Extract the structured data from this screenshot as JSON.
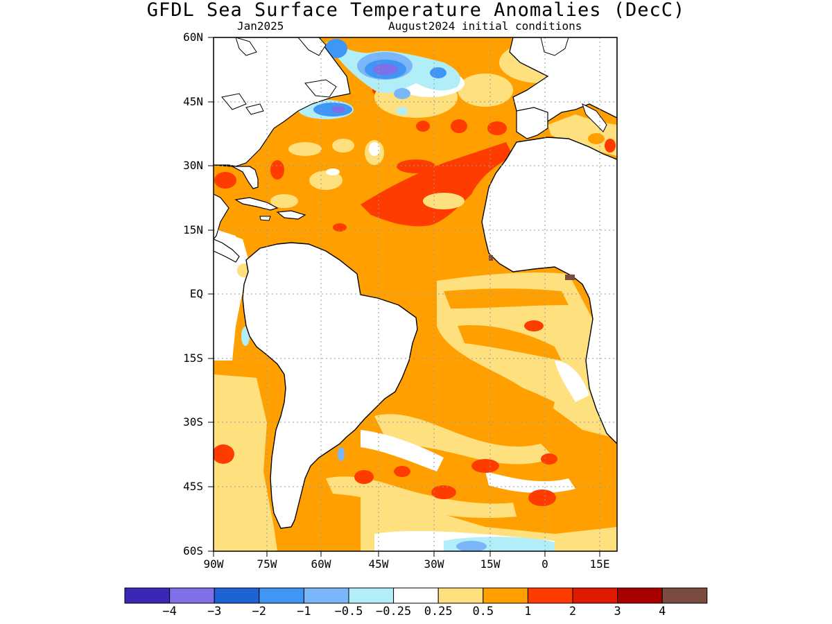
{
  "title": "GFDL Sea Surface Temperature Anomalies (DecC)",
  "subtitle_left": "Jan2025",
  "subtitle_right": "August2024 initial conditions",
  "lat_labels": [
    "60N",
    "45N",
    "30N",
    "15N",
    "EQ",
    "15S",
    "30S",
    "45S",
    "60S"
  ],
  "lon_labels": [
    "90W",
    "75W",
    "60W",
    "45W",
    "30W",
    "15W",
    "0",
    "15E"
  ],
  "colorbar": {
    "colors": [
      "#3a28b4",
      "#7f6fe8",
      "#1f62d4",
      "#3f96f4",
      "#7ab6f8",
      "#b2eef8",
      "#ffffff",
      "#ffe07e",
      "#ffa000",
      "#ff3c00",
      "#e01a00",
      "#a80000",
      "#7a4b3e"
    ],
    "labels": [
      "−4",
      "−3",
      "−2",
      "−1",
      "−0.5",
      "−0.25",
      "0.25",
      "0.5",
      "1",
      "2",
      "3",
      "4"
    ]
  },
  "colors": {
    "ocean_base": "#ffa000",
    "land": "#ffffff",
    "coast": "#000000",
    "grid": "#9a9a9a"
  }
}
